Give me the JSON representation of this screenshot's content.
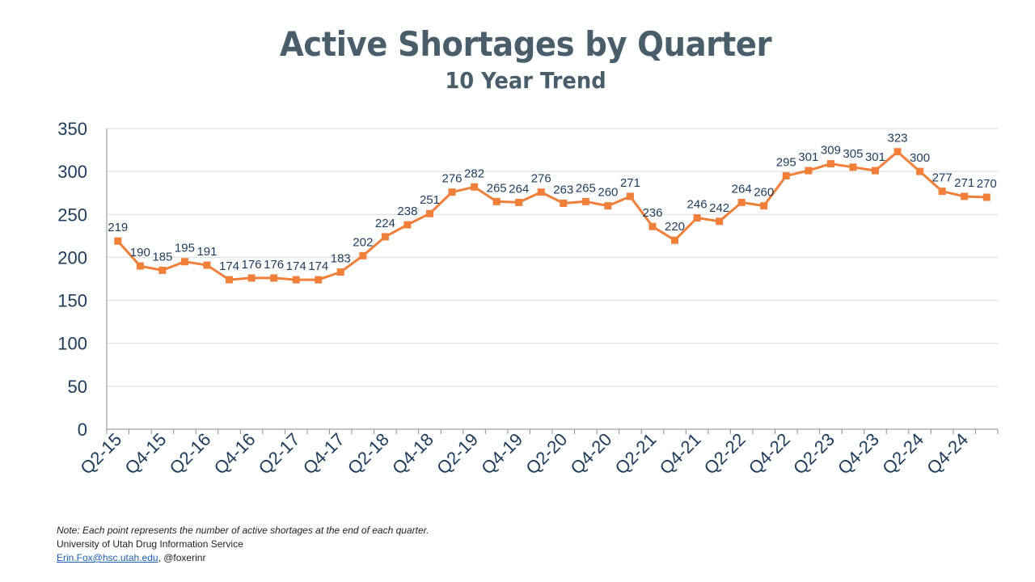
{
  "chart_data": {
    "type": "line",
    "title": "Active Shortages by Quarter",
    "subtitle": "10 Year Trend",
    "xlabel": "",
    "ylabel": "",
    "ylim": [
      0,
      350
    ],
    "yticks": [
      0,
      50,
      100,
      150,
      200,
      250,
      300,
      350
    ],
    "grid": true,
    "line_color": "#f07f3a",
    "label_color": "#1f3b5c",
    "axis_color": "#1f3b5c",
    "categories": [
      "Q2-15",
      "Q3-15",
      "Q4-15",
      "Q1-16",
      "Q2-16",
      "Q3-16",
      "Q4-16",
      "Q1-17",
      "Q2-17",
      "Q3-17",
      "Q4-17",
      "Q1-18",
      "Q2-18",
      "Q3-18",
      "Q4-18",
      "Q1-19",
      "Q2-19",
      "Q3-19",
      "Q4-19",
      "Q1-20",
      "Q2-20",
      "Q3-20",
      "Q4-20",
      "Q1-21",
      "Q2-21",
      "Q3-21",
      "Q4-21",
      "Q1-22",
      "Q2-22",
      "Q3-22",
      "Q4-22",
      "Q1-23",
      "Q2-23",
      "Q3-23",
      "Q4-23",
      "Q1-24",
      "Q2-24",
      "Q3-24",
      "Q4-24",
      "Q1-25"
    ],
    "tick_labels": [
      "Q2-15",
      "Q4-15",
      "Q2-16",
      "Q4-16",
      "Q2-17",
      "Q4-17",
      "Q2-18",
      "Q4-18",
      "Q2-19",
      "Q4-19",
      "Q2-20",
      "Q4-20",
      "Q2-21",
      "Q4-21",
      "Q2-22",
      "Q4-22",
      "Q2-23",
      "Q4-23",
      "Q2-24",
      "Q4-24"
    ],
    "values": [
      219,
      190,
      185,
      195,
      191,
      174,
      176,
      176,
      174,
      174,
      183,
      202,
      224,
      238,
      251,
      276,
      282,
      265,
      264,
      276,
      263,
      265,
      260,
      271,
      236,
      220,
      246,
      242,
      264,
      260,
      295,
      301,
      309,
      305,
      301,
      323,
      300,
      277,
      271,
      270
    ]
  },
  "footer": {
    "note": "Note: Each point represents the number of active shortages at the end of each quarter.",
    "org": "University of Utah Drug Information Service",
    "email": "Erin.Fox@hsc.utah.edu",
    "handle": ", @foxerinr"
  }
}
